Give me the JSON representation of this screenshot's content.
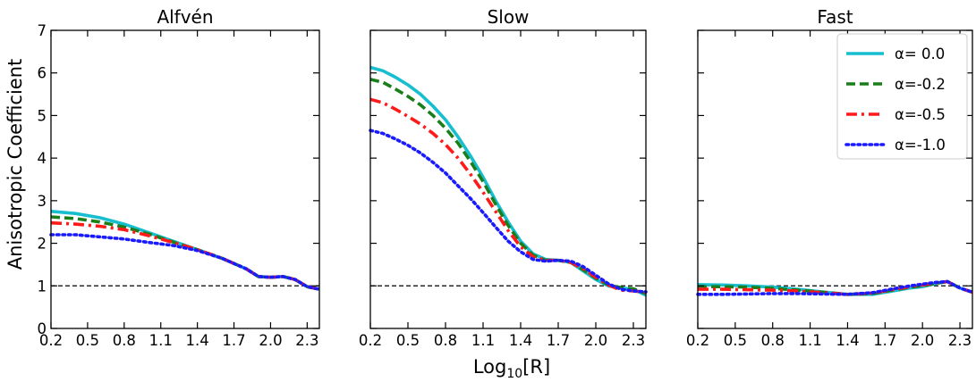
{
  "figure": {
    "ylabel": "Anisotropic Coefficient",
    "xlabel_base": "Log",
    "xlabel_sub": "10",
    "xlabel_arg": "[R]"
  },
  "chart_data": [
    {
      "type": "line",
      "title": "Alfvén",
      "xlim": [
        0.2,
        2.4
      ],
      "ylim": [
        0,
        7
      ],
      "xticks": [
        "0.2",
        "0.5",
        "0.8",
        "1.1",
        "1.4",
        "1.7",
        "2.0",
        "2.3"
      ],
      "yticks": [
        "0",
        "1",
        "2",
        "3",
        "4",
        "5",
        "6",
        "7"
      ],
      "reference_line": 1,
      "series": [
        {
          "label": "α= 0.0",
          "color": "#17becf",
          "dash": "solid",
          "x": [
            0.2,
            0.4,
            0.6,
            0.8,
            1.0,
            1.2,
            1.4,
            1.6,
            1.8,
            1.9,
            2.0,
            2.1,
            2.2,
            2.3,
            2.4
          ],
          "y": [
            2.75,
            2.7,
            2.6,
            2.45,
            2.25,
            2.05,
            1.85,
            1.65,
            1.4,
            1.22,
            1.2,
            1.22,
            1.15,
            0.98,
            0.92
          ]
        },
        {
          "label": "α=-0.2",
          "color": "#1a7f1a",
          "dash": "dashed",
          "x": [
            0.2,
            0.4,
            0.6,
            0.8,
            1.0,
            1.2,
            1.4,
            1.6,
            1.8,
            1.9,
            2.0,
            2.1,
            2.2,
            2.3,
            2.4
          ],
          "y": [
            2.62,
            2.58,
            2.5,
            2.38,
            2.22,
            2.03,
            1.85,
            1.65,
            1.4,
            1.22,
            1.2,
            1.22,
            1.15,
            0.98,
            0.92
          ]
        },
        {
          "label": "α=-0.5",
          "color": "#ff1a1a",
          "dash": "dashdot",
          "x": [
            0.2,
            0.4,
            0.6,
            0.8,
            1.0,
            1.2,
            1.4,
            1.6,
            1.8,
            1.9,
            2.0,
            2.1,
            2.2,
            2.3,
            2.4
          ],
          "y": [
            2.48,
            2.45,
            2.4,
            2.32,
            2.18,
            2.02,
            1.85,
            1.65,
            1.4,
            1.22,
            1.2,
            1.22,
            1.15,
            0.98,
            0.92
          ]
        },
        {
          "label": "α=-1.0",
          "color": "#1a1aff",
          "dash": "dotted",
          "x": [
            0.2,
            0.4,
            0.6,
            0.8,
            1.0,
            1.2,
            1.4,
            1.6,
            1.8,
            1.9,
            2.0,
            2.1,
            2.2,
            2.3,
            2.4
          ],
          "y": [
            2.2,
            2.2,
            2.15,
            2.1,
            2.02,
            1.95,
            1.83,
            1.65,
            1.4,
            1.22,
            1.2,
            1.22,
            1.15,
            0.98,
            0.92
          ]
        }
      ]
    },
    {
      "type": "line",
      "title": "Slow",
      "xlim": [
        0.2,
        2.4
      ],
      "ylim": [
        0,
        7
      ],
      "xticks": [
        "0.2",
        "0.5",
        "0.8",
        "1.1",
        "1.4",
        "1.7",
        "2.0",
        "2.3"
      ],
      "yticks": [
        "0",
        "1",
        "2",
        "3",
        "4",
        "5",
        "6",
        "7"
      ],
      "reference_line": 1,
      "series": [
        {
          "label": "α= 0.0",
          "color": "#17becf",
          "dash": "solid",
          "x": [
            0.2,
            0.3,
            0.4,
            0.5,
            0.6,
            0.7,
            0.8,
            0.9,
            1.0,
            1.1,
            1.2,
            1.3,
            1.4,
            1.5,
            1.6,
            1.7,
            1.8,
            1.9,
            2.0,
            2.1,
            2.2,
            2.3,
            2.4
          ],
          "y": [
            6.13,
            6.05,
            5.9,
            5.72,
            5.5,
            5.22,
            4.9,
            4.5,
            4.05,
            3.55,
            3.0,
            2.5,
            2.05,
            1.75,
            1.62,
            1.6,
            1.55,
            1.35,
            1.15,
            1.0,
            0.95,
            0.92,
            0.78
          ]
        },
        {
          "label": "α=-0.2",
          "color": "#1a7f1a",
          "dash": "dashed",
          "x": [
            0.2,
            0.3,
            0.4,
            0.5,
            0.6,
            0.7,
            0.8,
            0.9,
            1.0,
            1.1,
            1.2,
            1.3,
            1.4,
            1.5,
            1.6,
            1.7,
            1.8,
            1.9,
            2.0,
            2.1,
            2.2,
            2.3,
            2.4
          ],
          "y": [
            5.85,
            5.78,
            5.62,
            5.45,
            5.25,
            5.0,
            4.7,
            4.35,
            3.92,
            3.45,
            2.92,
            2.42,
            2.0,
            1.72,
            1.6,
            1.6,
            1.55,
            1.38,
            1.18,
            1.02,
            0.96,
            0.93,
            0.82
          ]
        },
        {
          "label": "α=-0.5",
          "color": "#ff1a1a",
          "dash": "dashdot",
          "x": [
            0.2,
            0.3,
            0.4,
            0.5,
            0.6,
            0.7,
            0.8,
            0.9,
            1.0,
            1.1,
            1.2,
            1.3,
            1.4,
            1.5,
            1.6,
            1.7,
            1.8,
            1.9,
            2.0,
            2.1,
            2.2,
            2.3,
            2.4
          ],
          "y": [
            5.38,
            5.3,
            5.15,
            4.98,
            4.8,
            4.58,
            4.32,
            4.0,
            3.62,
            3.2,
            2.75,
            2.3,
            1.92,
            1.68,
            1.6,
            1.6,
            1.55,
            1.4,
            1.2,
            1.02,
            0.9,
            0.88,
            0.85
          ]
        },
        {
          "label": "α=-1.0",
          "color": "#1a1aff",
          "dash": "dotted",
          "x": [
            0.2,
            0.3,
            0.4,
            0.5,
            0.6,
            0.7,
            0.8,
            0.9,
            1.0,
            1.1,
            1.2,
            1.3,
            1.4,
            1.5,
            1.6,
            1.7,
            1.8,
            1.9,
            2.0,
            2.1,
            2.2,
            2.3,
            2.4
          ],
          "y": [
            4.65,
            4.58,
            4.45,
            4.3,
            4.12,
            3.9,
            3.65,
            3.35,
            3.05,
            2.72,
            2.38,
            2.05,
            1.8,
            1.62,
            1.58,
            1.6,
            1.58,
            1.45,
            1.25,
            1.05,
            0.92,
            0.88,
            0.86
          ]
        }
      ]
    },
    {
      "type": "line",
      "title": "Fast",
      "xlim": [
        0.2,
        2.4
      ],
      "ylim": [
        0,
        7
      ],
      "xticks": [
        "0.2",
        "0.5",
        "0.8",
        "1.1",
        "1.4",
        "1.7",
        "2.0",
        "2.3"
      ],
      "yticks": [
        "0",
        "1",
        "2",
        "3",
        "4",
        "5",
        "6",
        "7"
      ],
      "reference_line": 1,
      "legend": {
        "position": "top-right"
      },
      "series": [
        {
          "label": "α= 0.0",
          "color": "#17becf",
          "dash": "solid",
          "x": [
            0.2,
            0.4,
            0.6,
            0.8,
            1.0,
            1.2,
            1.4,
            1.6,
            1.8,
            1.9,
            2.0,
            2.1,
            2.2,
            2.3,
            2.4
          ],
          "y": [
            1.03,
            1.02,
            1.0,
            0.97,
            0.92,
            0.86,
            0.8,
            0.8,
            0.9,
            0.95,
            0.98,
            1.05,
            1.1,
            0.95,
            0.85
          ]
        },
        {
          "label": "α=-0.2",
          "color": "#1a7f1a",
          "dash": "dashed",
          "x": [
            0.2,
            0.4,
            0.6,
            0.8,
            1.0,
            1.2,
            1.4,
            1.6,
            1.8,
            1.9,
            2.0,
            2.1,
            2.2,
            2.3,
            2.4
          ],
          "y": [
            0.98,
            0.98,
            0.97,
            0.94,
            0.9,
            0.85,
            0.8,
            0.82,
            0.92,
            0.97,
            1.0,
            1.06,
            1.1,
            0.95,
            0.85
          ]
        },
        {
          "label": "α=-0.5",
          "color": "#ff1a1a",
          "dash": "dashdot",
          "x": [
            0.2,
            0.4,
            0.6,
            0.8,
            1.0,
            1.2,
            1.4,
            1.6,
            1.8,
            1.9,
            2.0,
            2.1,
            2.2,
            2.3,
            2.4
          ],
          "y": [
            0.92,
            0.92,
            0.91,
            0.9,
            0.88,
            0.84,
            0.8,
            0.83,
            0.93,
            0.98,
            1.02,
            1.07,
            1.1,
            0.95,
            0.85
          ]
        },
        {
          "label": "α=-1.0",
          "color": "#1a1aff",
          "dash": "dotted",
          "x": [
            0.2,
            0.4,
            0.6,
            0.8,
            1.0,
            1.2,
            1.4,
            1.6,
            1.8,
            1.9,
            2.0,
            2.1,
            2.2,
            2.3,
            2.4
          ],
          "y": [
            0.8,
            0.8,
            0.81,
            0.82,
            0.82,
            0.81,
            0.8,
            0.84,
            0.95,
            1.0,
            1.04,
            1.08,
            1.1,
            0.95,
            0.85
          ]
        }
      ]
    }
  ]
}
